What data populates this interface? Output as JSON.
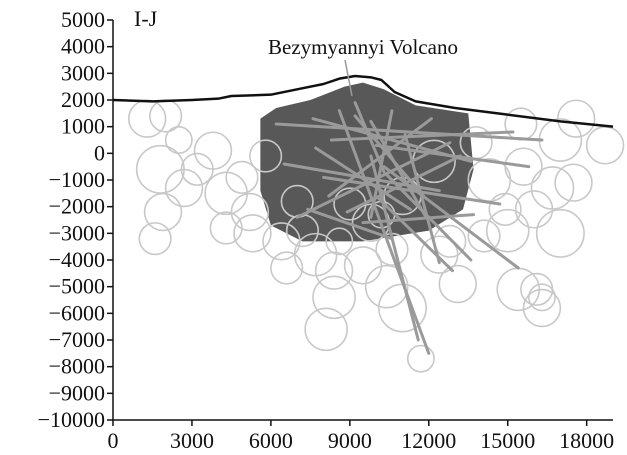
{
  "chart_data": {
    "type": "scatter",
    "panel_label": "I-J",
    "annotation": "Bezymyannyi Volcano",
    "xlim": [
      0,
      19000
    ],
    "ylim": [
      -10000,
      5000
    ],
    "x_ticks": [
      0,
      3000,
      6000,
      9000,
      12000,
      15000,
      18000
    ],
    "y_ticks": [
      5000,
      4000,
      3000,
      2000,
      1000,
      0,
      -1000,
      -2000,
      -3000,
      -4000,
      -5000,
      -6000,
      -7000,
      -8000,
      -9000,
      -10000
    ],
    "x_tick_labels": [
      "0",
      "3000",
      "6000",
      "9000",
      "12000",
      "15000",
      "18000"
    ],
    "y_tick_labels": [
      "5000",
      "4000",
      "3000",
      "2000",
      "1000",
      "0",
      "−1000",
      "−2000",
      "−3000",
      "−4000",
      "−5000",
      "−6000",
      "−7000",
      "−8000",
      "−9000",
      "−10000"
    ],
    "grid": false,
    "colors": {
      "topography": "#111111",
      "circles": "#c8c8c8",
      "segments": "#9a9a9a",
      "dense_cloud": "#2e2e2e"
    },
    "topography": [
      [
        0,
        2000
      ],
      [
        1500,
        1950
      ],
      [
        3000,
        2000
      ],
      [
        4000,
        2050
      ],
      [
        4500,
        2150
      ],
      [
        6000,
        2200
      ],
      [
        7000,
        2400
      ],
      [
        8000,
        2600
      ],
      [
        8600,
        2800
      ],
      [
        9200,
        2900
      ],
      [
        9800,
        2850
      ],
      [
        10200,
        2750
      ],
      [
        10700,
        2300
      ],
      [
        11500,
        1950
      ],
      [
        13000,
        1700
      ],
      [
        15000,
        1450
      ],
      [
        17000,
        1200
      ],
      [
        19000,
        1000
      ]
    ],
    "dense_cloud": [
      [
        5600,
        1300
      ],
      [
        6200,
        1700
      ],
      [
        7500,
        2000
      ],
      [
        8800,
        2500
      ],
      [
        9500,
        2650
      ],
      [
        10300,
        2400
      ],
      [
        11500,
        1800
      ],
      [
        13500,
        1500
      ],
      [
        13700,
        -600
      ],
      [
        13300,
        -2100
      ],
      [
        12000,
        -2900
      ],
      [
        9500,
        -3300
      ],
      [
        7200,
        -3300
      ],
      [
        6000,
        -2700
      ],
      [
        5600,
        -1400
      ]
    ],
    "circles": [
      [
        1300,
        1300,
        700
      ],
      [
        2000,
        1400,
        600
      ],
      [
        1800,
        -600,
        900
      ],
      [
        1900,
        -2200,
        700
      ],
      [
        1600,
        -3200,
        600
      ],
      [
        2700,
        -1300,
        700
      ],
      [
        3200,
        -600,
        600
      ],
      [
        2500,
        500,
        500
      ],
      [
        3800,
        100,
        700
      ],
      [
        4300,
        -1500,
        800
      ],
      [
        4900,
        -900,
        600
      ],
      [
        5300,
        -3000,
        700
      ],
      [
        4300,
        -2800,
        600
      ],
      [
        6400,
        -3300,
        700
      ],
      [
        7200,
        -2900,
        600
      ],
      [
        6600,
        -4300,
        600
      ],
      [
        7700,
        -3800,
        800
      ],
      [
        8400,
        -4400,
        700
      ],
      [
        8400,
        -5400,
        800
      ],
      [
        8100,
        -6600,
        800
      ],
      [
        9500,
        -4200,
        700
      ],
      [
        10400,
        -5000,
        800
      ],
      [
        11000,
        -5800,
        900
      ],
      [
        12400,
        -3800,
        700
      ],
      [
        13100,
        -4900,
        700
      ],
      [
        14100,
        -3100,
        600
      ],
      [
        15400,
        -5100,
        800
      ],
      [
        16100,
        -5100,
        600
      ],
      [
        16300,
        -5800,
        700
      ],
      [
        16300,
        -5400,
        500
      ],
      [
        15000,
        -2900,
        800
      ],
      [
        16000,
        -2100,
        700
      ],
      [
        17000,
        -3000,
        900
      ],
      [
        16700,
        -1300,
        800
      ],
      [
        17500,
        -1100,
        700
      ],
      [
        15600,
        -500,
        700
      ],
      [
        17000,
        500,
        800
      ],
      [
        18700,
        300,
        700
      ],
      [
        17600,
        1300,
        700
      ],
      [
        15500,
        1100,
        600
      ],
      [
        12200,
        -300,
        800
      ],
      [
        11000,
        -1600,
        700
      ],
      [
        9800,
        -2600,
        700
      ],
      [
        9000,
        -1900,
        600
      ],
      [
        10200,
        -2300,
        500
      ],
      [
        14300,
        -1000,
        800
      ],
      [
        14900,
        -2100,
        600
      ],
      [
        11700,
        -7700,
        500
      ],
      [
        5200,
        -2200,
        700
      ],
      [
        7000,
        -1800,
        600
      ],
      [
        8600,
        -3300,
        500
      ],
      [
        10600,
        -3600,
        600
      ],
      [
        12800,
        -3300,
        600
      ],
      [
        5800,
        -100,
        600
      ],
      [
        13800,
        400,
        600
      ]
    ],
    "segments": [
      [
        [
          6200,
          1100
        ],
        [
          16300,
          500
        ]
      ],
      [
        [
          7600,
          1300
        ],
        [
          13600,
          -300
        ]
      ],
      [
        [
          9200,
          1400
        ],
        [
          11800,
          -1600
        ]
      ],
      [
        [
          8300,
          500
        ],
        [
          15200,
          800
        ]
      ],
      [
        [
          8600,
          1600
        ],
        [
          12000,
          -7500
        ]
      ],
      [
        [
          9800,
          -100
        ],
        [
          11600,
          -7000
        ]
      ],
      [
        [
          10400,
          -800
        ],
        [
          13600,
          -4000
        ]
      ],
      [
        [
          10300,
          -500
        ],
        [
          15400,
          -4300
        ]
      ],
      [
        [
          8000,
          -900
        ],
        [
          14700,
          -1900
        ]
      ],
      [
        [
          7000,
          -2400
        ],
        [
          12800,
          400
        ]
      ],
      [
        [
          6500,
          -400
        ],
        [
          12400,
          -1400
        ]
      ],
      [
        [
          8900,
          -2200
        ],
        [
          13200,
          -100
        ]
      ],
      [
        [
          9200,
          1900
        ],
        [
          10300,
          -700
        ]
      ],
      [
        [
          9800,
          1200
        ],
        [
          11900,
          -2400
        ]
      ],
      [
        [
          10100,
          -1700
        ],
        [
          12900,
          -4400
        ]
      ],
      [
        [
          7400,
          -2100
        ],
        [
          10600,
          -3200
        ]
      ],
      [
        [
          10000,
          300
        ],
        [
          15800,
          -500
        ]
      ],
      [
        [
          11100,
          700
        ],
        [
          12400,
          -4100
        ]
      ],
      [
        [
          7700,
          200
        ],
        [
          11300,
          -2100
        ]
      ],
      [
        [
          9500,
          -2600
        ],
        [
          13700,
          -2300
        ]
      ],
      [
        [
          10600,
          1600
        ],
        [
          9800,
          -2400
        ]
      ],
      [
        [
          8200,
          -1600
        ],
        [
          12100,
          1300
        ]
      ]
    ]
  }
}
